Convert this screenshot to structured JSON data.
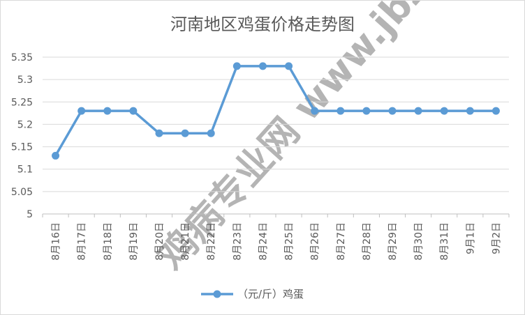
{
  "chart_data": {
    "type": "line",
    "title": "河南地区鸡蛋价格走势图",
    "categories": [
      "8月16日",
      "8月17日",
      "8月18日",
      "8月19日",
      "8月20日",
      "8月21日",
      "8月22日",
      "8月23日",
      "8月24日",
      "8月25日",
      "8月26日",
      "8月27日",
      "8月28日",
      "8月29日",
      "8月30日",
      "8月31日",
      "9月1日",
      "9月2日"
    ],
    "series": [
      {
        "name": "（元/斤）鸡蛋",
        "values": [
          5.13,
          5.23,
          5.23,
          5.23,
          5.18,
          5.18,
          5.18,
          5.33,
          5.33,
          5.33,
          5.23,
          5.23,
          5.23,
          5.23,
          5.23,
          5.23,
          5.23,
          5.23
        ],
        "color": "#5b9bd5"
      }
    ],
    "y_ticks": [
      "5",
      "5.05",
      "5.1",
      "5.15",
      "5.2",
      "5.25",
      "5.3",
      "5.35"
    ],
    "ylim": [
      5,
      5.35
    ],
    "grid": true,
    "legend": "bottom",
    "watermark": "鸡病专业网 www.jbzyw.com"
  }
}
